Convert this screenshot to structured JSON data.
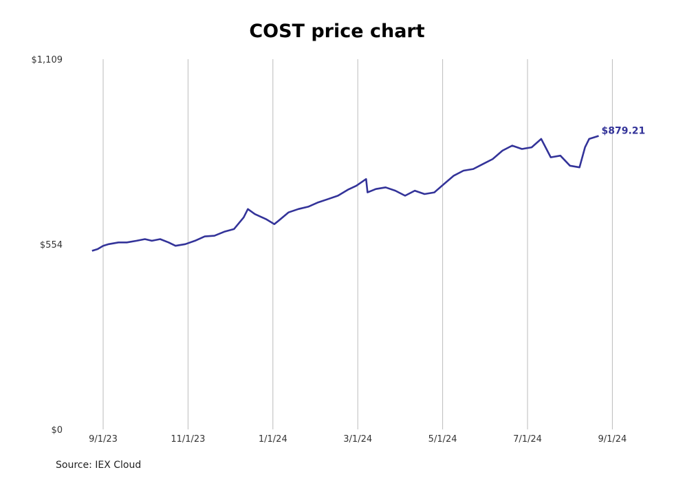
{
  "chart_data": {
    "type": "line",
    "title": "COST price chart",
    "xlabel": "",
    "ylabel": "",
    "source": "Source: IEX Cloud",
    "line_color": "#333399",
    "grid": "vertical",
    "ylim": [
      0,
      1109
    ],
    "y_ticks": [
      {
        "value": 0,
        "label": "$0"
      },
      {
        "value": 554,
        "label": "$554"
      },
      {
        "value": 1109,
        "label": "$1,109"
      }
    ],
    "x_ticks": [
      "9/1/23",
      "11/1/23",
      "1/1/24",
      "3/1/24",
      "5/1/24",
      "7/1/24",
      "9/1/24"
    ],
    "last_value_label": "$879.21",
    "series": [
      {
        "x": [
          "2023-08-24",
          "2023-08-28",
          "2023-09-01",
          "2023-09-05",
          "2023-09-12",
          "2023-09-18",
          "2023-09-25",
          "2023-10-01",
          "2023-10-06",
          "2023-10-12",
          "2023-10-18",
          "2023-10-23",
          "2023-10-30",
          "2023-11-06",
          "2023-11-13",
          "2023-11-20",
          "2023-11-27",
          "2023-12-04",
          "2023-12-11",
          "2023-12-14",
          "2023-12-19",
          "2023-12-27",
          "2024-01-02",
          "2024-01-05",
          "2024-01-12",
          "2024-01-19",
          "2024-01-26",
          "2024-02-02",
          "2024-02-09",
          "2024-02-16",
          "2024-02-23",
          "2024-02-29",
          "2024-03-07",
          "2024-03-08",
          "2024-03-14",
          "2024-03-21",
          "2024-03-28",
          "2024-04-04",
          "2024-04-11",
          "2024-04-18",
          "2024-04-25",
          "2024-05-02",
          "2024-05-09",
          "2024-05-16",
          "2024-05-23",
          "2024-05-30",
          "2024-06-06",
          "2024-06-13",
          "2024-06-20",
          "2024-06-27",
          "2024-07-04",
          "2024-07-11",
          "2024-07-18",
          "2024-07-25",
          "2024-08-01",
          "2024-08-08",
          "2024-08-12",
          "2024-08-15",
          "2024-08-22"
        ],
        "values": [
          535,
          540,
          550,
          555,
          560,
          560,
          565,
          570,
          565,
          570,
          560,
          550,
          555,
          565,
          578,
          580,
          592,
          600,
          635,
          660,
          645,
          630,
          615,
          625,
          650,
          660,
          667,
          680,
          690,
          700,
          718,
          730,
          750,
          710,
          720,
          725,
          715,
          700,
          715,
          705,
          710,
          735,
          760,
          775,
          780,
          795,
          810,
          835,
          850,
          840,
          845,
          870,
          815,
          820,
          790,
          785,
          845,
          870,
          879.21
        ]
      }
    ]
  }
}
